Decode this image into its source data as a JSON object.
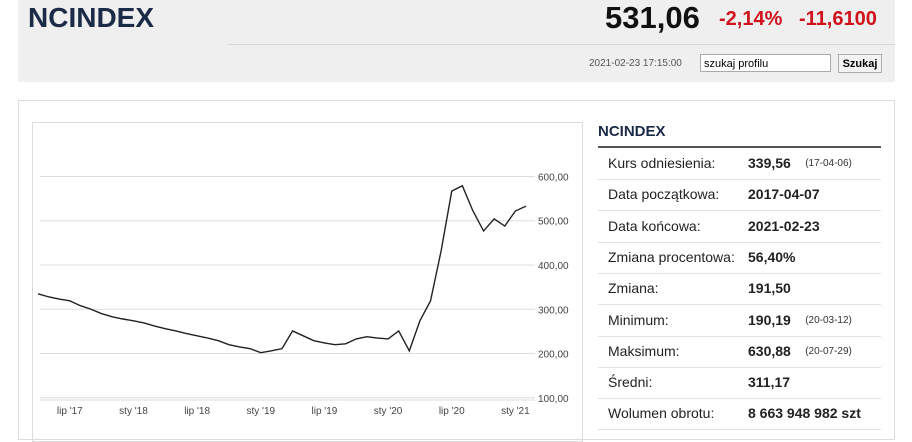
{
  "header": {
    "title": "NCINDEX",
    "price": "531,06",
    "change_pct": "-2,14%",
    "change": "-11,6100",
    "timestamp": "2021-02-23 17:15:00",
    "search_placeholder": "szukaj profilu",
    "search_button": "Szukaj"
  },
  "info": {
    "title": "NCINDEX",
    "rows": [
      [
        "Kurs odniesienia:",
        "339,56",
        "(17-04-06)"
      ],
      [
        "Data początkowa:",
        "2017-04-07",
        null
      ],
      [
        "Data końcowa:",
        "2021-02-23",
        null
      ],
      [
        "Zmiana procentowa:",
        "56,40%",
        null
      ],
      [
        "Zmiana:",
        "191,50",
        null
      ],
      [
        "Minimum:",
        "190,19",
        "(20-03-12)"
      ],
      [
        "Maksimum:",
        "630,88",
        "(20-07-29)"
      ],
      [
        "Średni:",
        "311,17",
        null
      ],
      [
        "Wolumen obrotu:",
        "8 663 948 982 szt",
        null
      ]
    ]
  },
  "chart_data": {
    "type": "line",
    "categories": [
      null,
      null,
      null,
      "lip '17",
      null,
      null,
      null,
      null,
      null,
      "sty '18",
      null,
      null,
      null,
      null,
      null,
      "lip '18",
      null,
      null,
      null,
      null,
      null,
      "sty '19",
      null,
      null,
      null,
      null,
      null,
      "lip '19",
      null,
      null,
      null,
      null,
      null,
      "sty '20",
      null,
      null,
      null,
      null,
      null,
      "lip '20",
      null,
      null,
      null,
      null,
      null,
      "sty '21",
      null
    ],
    "series": [
      {
        "name": "NCINDEX",
        "color": "#222222",
        "values": [
          335,
          328,
          323,
          319,
          308,
          300,
          290,
          283,
          278,
          274,
          269,
          262,
          256,
          251,
          245,
          240,
          235,
          229,
          220,
          215,
          211,
          202,
          206,
          211,
          251,
          240,
          229,
          224,
          220,
          222,
          233,
          238,
          235,
          233,
          251,
          206,
          274,
          319,
          432,
          567,
          579,
          522,
          477,
          504,
          488,
          522,
          533
        ]
      }
    ],
    "ylim": [
      95,
      705
    ],
    "yticks": [
      {
        "value": 100,
        "label": "100,00"
      },
      {
        "value": 200,
        "label": "200,00"
      },
      {
        "value": 300,
        "label": "300,00"
      },
      {
        "value": 400,
        "label": "400,00"
      },
      {
        "value": 500,
        "label": "500,00"
      },
      {
        "value": 600,
        "label": "600,00"
      }
    ],
    "grid": true
  }
}
